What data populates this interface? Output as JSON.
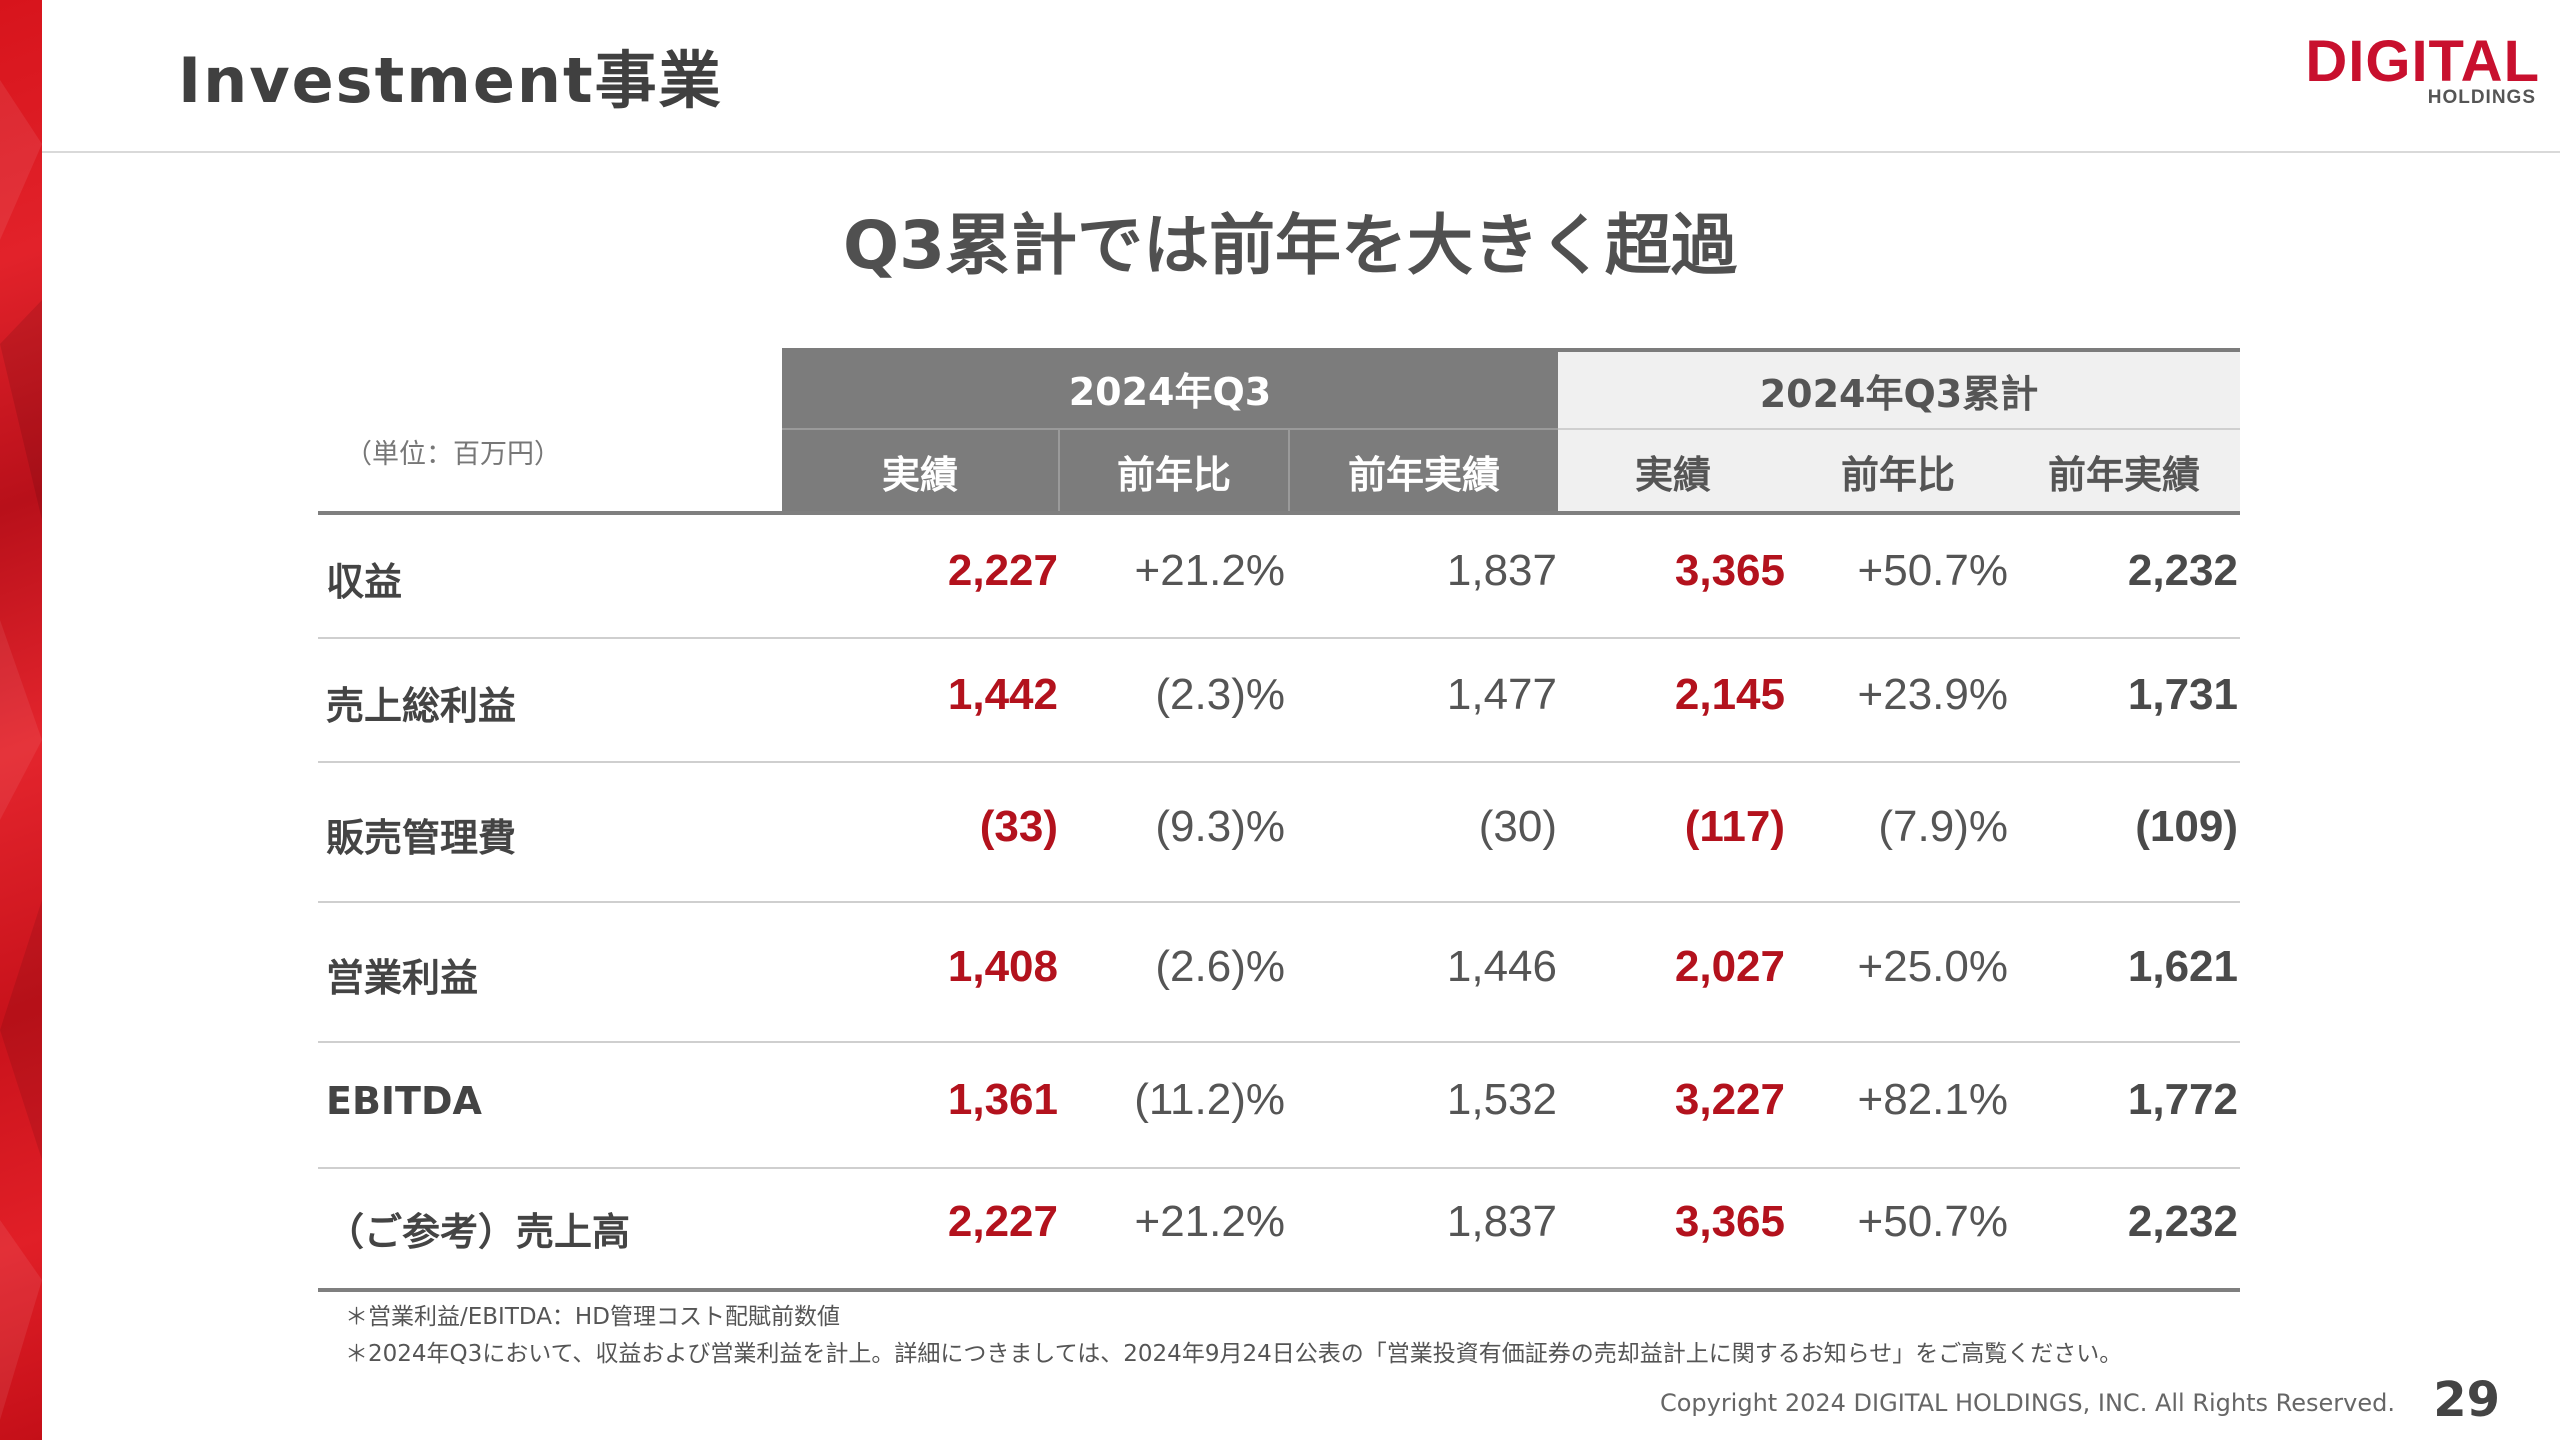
{
  "page": {
    "title": "Investment事業",
    "headline": "Q3累計では前年を大きく超過",
    "unit_label": "（単位：百万円）",
    "page_number": "29",
    "copyright": "Copyright 2024 DIGITAL HOLDINGS, INC. All Rights Reserved."
  },
  "logo": {
    "main": "DIGITAL",
    "sub": "HOLDINGS"
  },
  "colors": {
    "brand_red": "#c8102e",
    "value_red": "#b3121d",
    "header_dark": "#7c7c7c",
    "header_light": "#f0f0f0"
  },
  "table": {
    "groups": [
      {
        "label": "2024年Q3"
      },
      {
        "label": "2024年Q3累計"
      }
    ],
    "columns": [
      "実績",
      "前年比",
      "前年実績",
      "実績",
      "前年比",
      "前年実績"
    ],
    "rows": [
      {
        "label": "収益",
        "values": [
          "2,227",
          "+21.2%",
          "1,837",
          "3,365",
          "+50.7%",
          "2,232"
        ]
      },
      {
        "label": "売上総利益",
        "values": [
          "1,442",
          "(2.3)%",
          "1,477",
          "2,145",
          "+23.9%",
          "1,731"
        ]
      },
      {
        "label": "販売管理費",
        "values": [
          "(33)",
          "(9.3)%",
          "(30)",
          "(117)",
          "(7.9)%",
          "(109)"
        ]
      },
      {
        "label": "営業利益",
        "values": [
          "1,408",
          "(2.6)%",
          "1,446",
          "2,027",
          "+25.0%",
          "1,621"
        ]
      },
      {
        "label": "EBITDA",
        "values": [
          "1,361",
          "(11.2)%",
          "1,532",
          "3,227",
          "+82.1%",
          "1,772"
        ]
      },
      {
        "label": "（ご参考）売上高",
        "values": [
          "2,227",
          "+21.2%",
          "1,837",
          "3,365",
          "+50.7%",
          "2,232"
        ]
      }
    ]
  },
  "notes": [
    "＊営業利益/EBITDA：HD管理コスト配賦前数値",
    "＊2024年Q3において、収益および営業利益を計上。詳細につきましては、2024年9月24日公表の「営業投資有価証券の売却益計上に関するお知らせ」をご高覧ください。"
  ]
}
